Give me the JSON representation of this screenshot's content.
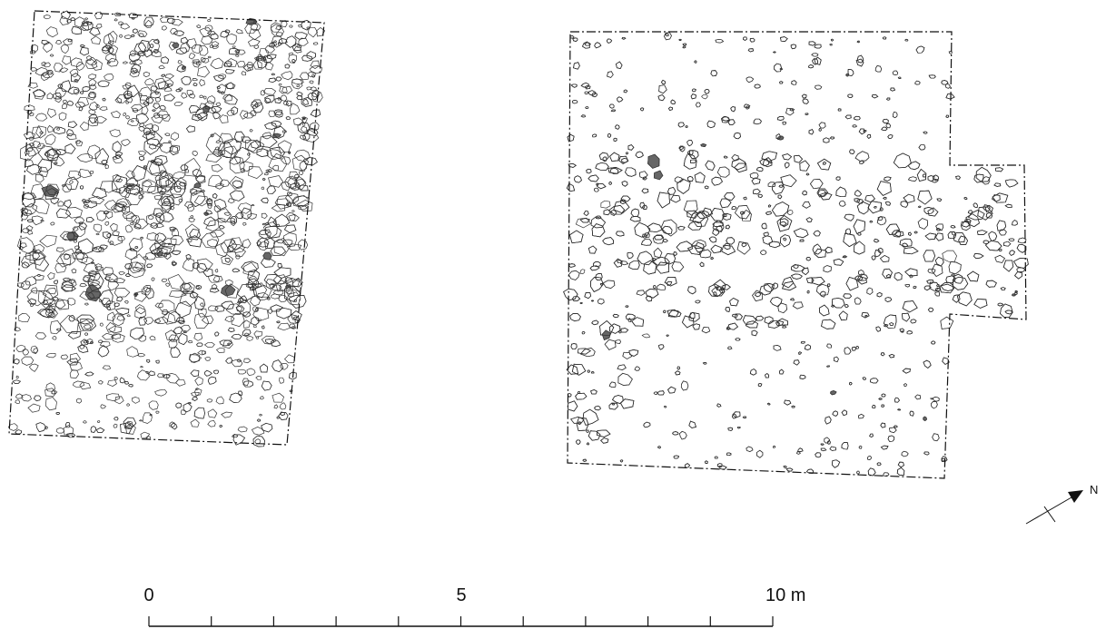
{
  "scale_bar": {
    "labels": [
      "0",
      "5",
      "10 m"
    ]
  },
  "north_arrow": {
    "label": "N"
  }
}
